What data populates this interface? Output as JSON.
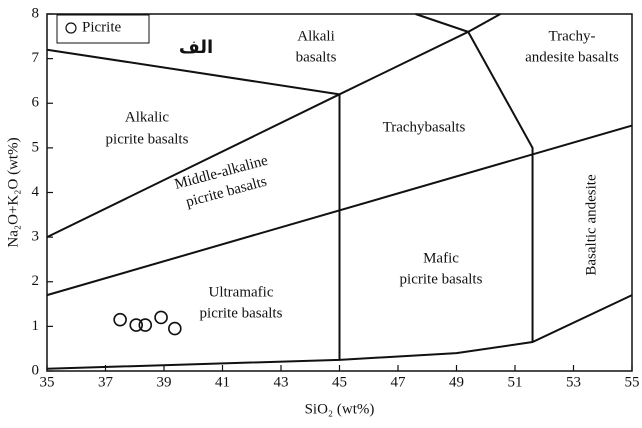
{
  "chart_data": {
    "type": "scatter",
    "xlabel": "SiO₂ (wt%)",
    "ylabel": "Na₂O+K₂O (wt%)",
    "annotation": "الف",
    "xlim": [
      35,
      55
    ],
    "ylim": [
      0,
      8
    ],
    "xticks": [
      35,
      37,
      39,
      41,
      43,
      45,
      47,
      49,
      51,
      53,
      55
    ],
    "yticks": [
      0,
      1,
      2,
      3,
      4,
      5,
      6,
      7,
      8
    ],
    "series": [
      {
        "name": "Picrite",
        "color": "#111111",
        "x": [
          37.5,
          38.05,
          38.36,
          38.9,
          39.37
        ],
        "values": [
          1.15,
          1.03,
          1.03,
          1.2,
          0.95
        ]
      }
    ],
    "boundaries": [
      {
        "x": [
          35,
          45,
          49,
          51.6,
          55
        ],
        "y": [
          0.05,
          0.25,
          0.4,
          0.65,
          1.7
        ]
      },
      {
        "x": [
          35,
          55
        ],
        "y": [
          1.7,
          5.5
        ]
      },
      {
        "x": [
          35,
          45
        ],
        "y": [
          3.0,
          6.2
        ]
      },
      {
        "x": [
          35,
          45
        ],
        "y": [
          7.2,
          6.2
        ]
      },
      {
        "x": [
          45,
          45
        ],
        "y": [
          0.25,
          6.2
        ]
      },
      {
        "x": [
          45,
          49.4,
          51.6,
          51.6
        ],
        "y": [
          6.2,
          7.6,
          5.0,
          0.65
        ]
      },
      {
        "x": [
          47.6,
          49.4,
          50.5
        ],
        "y": [
          8,
          7.6,
          8
        ]
      }
    ],
    "fields": [
      {
        "lines": [
          "Alkali",
          "basalts"
        ]
      },
      {
        "lines": [
          "Trachy-",
          "andesite basalts"
        ]
      },
      {
        "lines": [
          "Alkalic",
          "picrite basalts"
        ]
      },
      {
        "lines": [
          "Trachybasalts"
        ]
      },
      {
        "lines": [
          "Middle-alkaline",
          "picrite basalts"
        ]
      },
      {
        "lines": [
          "Basaltic andesite"
        ]
      },
      {
        "lines": [
          "Mafic",
          "picrite basalts"
        ]
      },
      {
        "lines": [
          "Ultramafic",
          "picrite basalts"
        ]
      }
    ]
  }
}
